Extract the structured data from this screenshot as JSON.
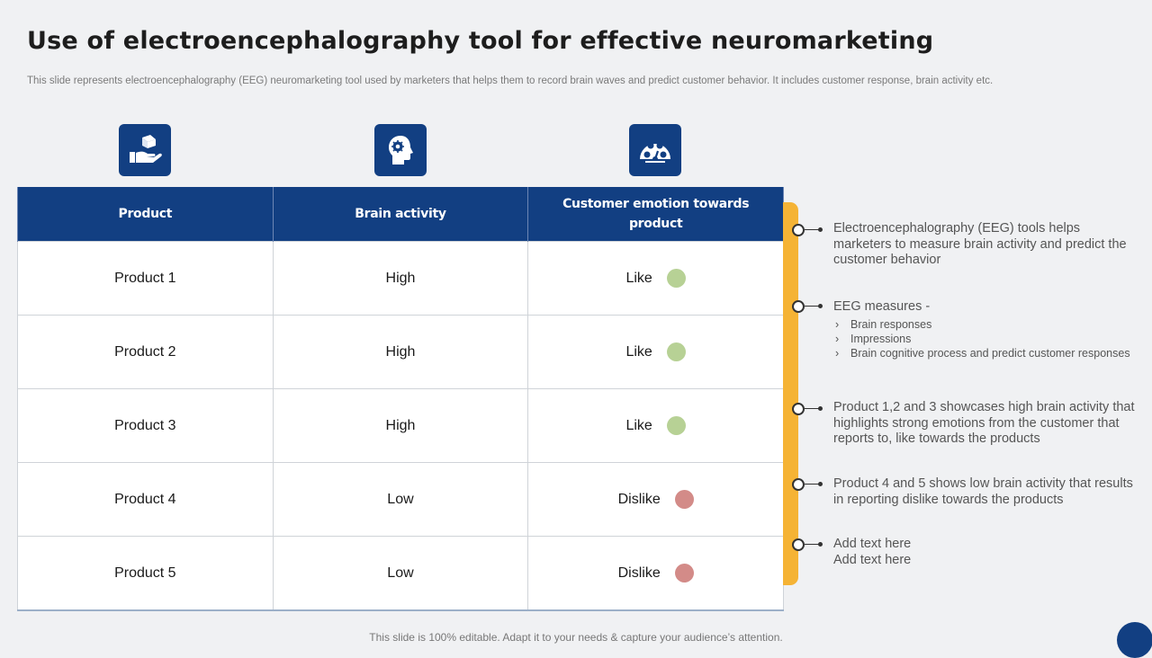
{
  "title": "Use of electroencephalography tool for effective neuromarketing",
  "subtitle": "This slide represents electroencephalography (EEG) neuromarketing tool used by marketers that helps them to record brain waves and predict customer behavior. It includes customer response, brain activity etc.",
  "icons": [
    "product-hand-icon",
    "brain-head-icon",
    "emotion-gauge-icon"
  ],
  "colors": {
    "primary": "#123f82",
    "accent": "#f5b335",
    "like": "#b7d195",
    "dislike": "#d38b88"
  },
  "table": {
    "headers": [
      "Product",
      "Brain activity",
      "Customer emotion towards product"
    ],
    "rows": [
      {
        "product": "Product 1",
        "activity": "High",
        "emotion": "Like",
        "sentiment": "like"
      },
      {
        "product": "Product 2",
        "activity": "High",
        "emotion": "Like",
        "sentiment": "like"
      },
      {
        "product": "Product 3",
        "activity": "High",
        "emotion": "Like",
        "sentiment": "like"
      },
      {
        "product": "Product 4",
        "activity": "Low",
        "emotion": "Dislike",
        "sentiment": "dislike"
      },
      {
        "product": "Product 5",
        "activity": "Low",
        "emotion": "Dislike",
        "sentiment": "dislike"
      }
    ]
  },
  "notes": [
    {
      "text": "Electroencephalography (EEG) tools helps marketers to measure brain activity and predict the customer behavior"
    },
    {
      "text": "EEG measures -",
      "bullets": [
        "Brain responses",
        "Impressions",
        "Brain cognitive process and predict customer responses"
      ]
    },
    {
      "text": "Product 1,2 and 3 showcases high brain activity that highlights strong emotions from the customer that reports to, like towards the products"
    },
    {
      "text": "Product 4 and 5 shows low brain activity that results in reporting dislike towards the products"
    },
    {
      "text": "Add text here",
      "text2": "Add text here"
    }
  ],
  "bullet_marker": "›",
  "footer": "This slide is 100% editable. Adapt it to your needs & capture your audience’s attention."
}
